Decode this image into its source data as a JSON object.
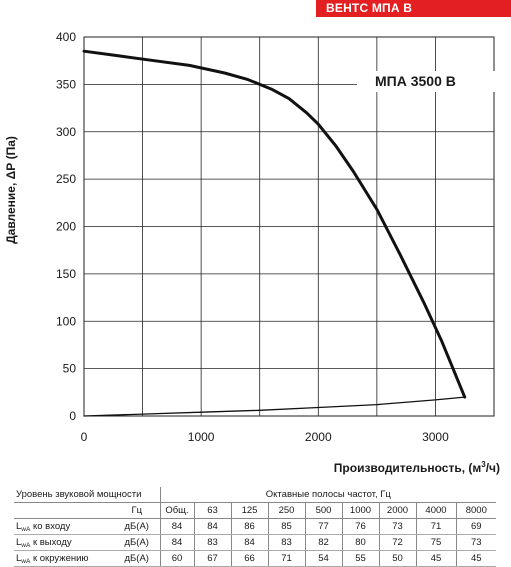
{
  "brand_banner": "ВЕНТС МПА В",
  "model_label": "МПА 3500 В",
  "chart_data": {
    "type": "line",
    "title": "",
    "xlabel": "Производительность, (м³/ч)",
    "xlabel_main": "Производительность, (м",
    "xlabel_sup": "3",
    "xlabel_tail": "/ч)",
    "ylabel": "Давление, ΔР (Па)",
    "xlim": [
      0,
      3500
    ],
    "ylim": [
      0,
      400
    ],
    "x_ticks": [
      0,
      1000,
      2000,
      3000
    ],
    "x_tick_labels": [
      "0",
      "1000",
      "2000",
      "3000"
    ],
    "x_gridlines": [
      500,
      1000,
      1500,
      2000,
      2500,
      3000
    ],
    "y_ticks": [
      0,
      50,
      100,
      150,
      200,
      250,
      300,
      350,
      400
    ],
    "y_tick_labels": [
      "0",
      "50",
      "100",
      "150",
      "200",
      "250",
      "300",
      "350",
      "400"
    ],
    "grid": true,
    "series": [
      {
        "role": "fan-curve",
        "x": [
          0,
          300,
          600,
          900,
          1200,
          1400,
          1600,
          1750,
          1900,
          2000,
          2150,
          2300,
          2500,
          2700,
          2900,
          3050,
          3150,
          3250
        ],
        "y": [
          385,
          380,
          375,
          370,
          362,
          355,
          345,
          335,
          320,
          308,
          285,
          258,
          218,
          170,
          120,
          80,
          50,
          20
        ]
      },
      {
        "role": "system-curve",
        "x": [
          0,
          500,
          1000,
          1500,
          2000,
          2500,
          3000,
          3250
        ],
        "y": [
          0,
          2,
          4,
          6,
          9,
          12,
          17,
          20
        ]
      }
    ]
  },
  "sound_table": {
    "title": "Уровень звуковой мощности",
    "bands_title": "Октавные полосы частот, Гц",
    "unit_hz": "Гц",
    "total_label": "Общ.",
    "bands": [
      "63",
      "125",
      "250",
      "500",
      "1000",
      "2000",
      "4000",
      "8000"
    ],
    "rows": [
      {
        "label_prefix": "L",
        "label_sub": "wA",
        "label_rest": " ко входу",
        "unit": "дБ(А)",
        "total": "84",
        "values": [
          "84",
          "86",
          "85",
          "77",
          "76",
          "73",
          "71",
          "69"
        ]
      },
      {
        "label_prefix": "L",
        "label_sub": "wA",
        "label_rest": " к выходу",
        "unit": "дБ(А)",
        "total": "84",
        "values": [
          "83",
          "84",
          "83",
          "82",
          "80",
          "72",
          "75",
          "73"
        ]
      },
      {
        "label_prefix": "L",
        "label_sub": "wA",
        "label_rest": " к окружению",
        "unit": "дБ(А)",
        "total": "60",
        "values": [
          "67",
          "66",
          "71",
          "54",
          "55",
          "50",
          "45",
          "45"
        ]
      }
    ]
  }
}
